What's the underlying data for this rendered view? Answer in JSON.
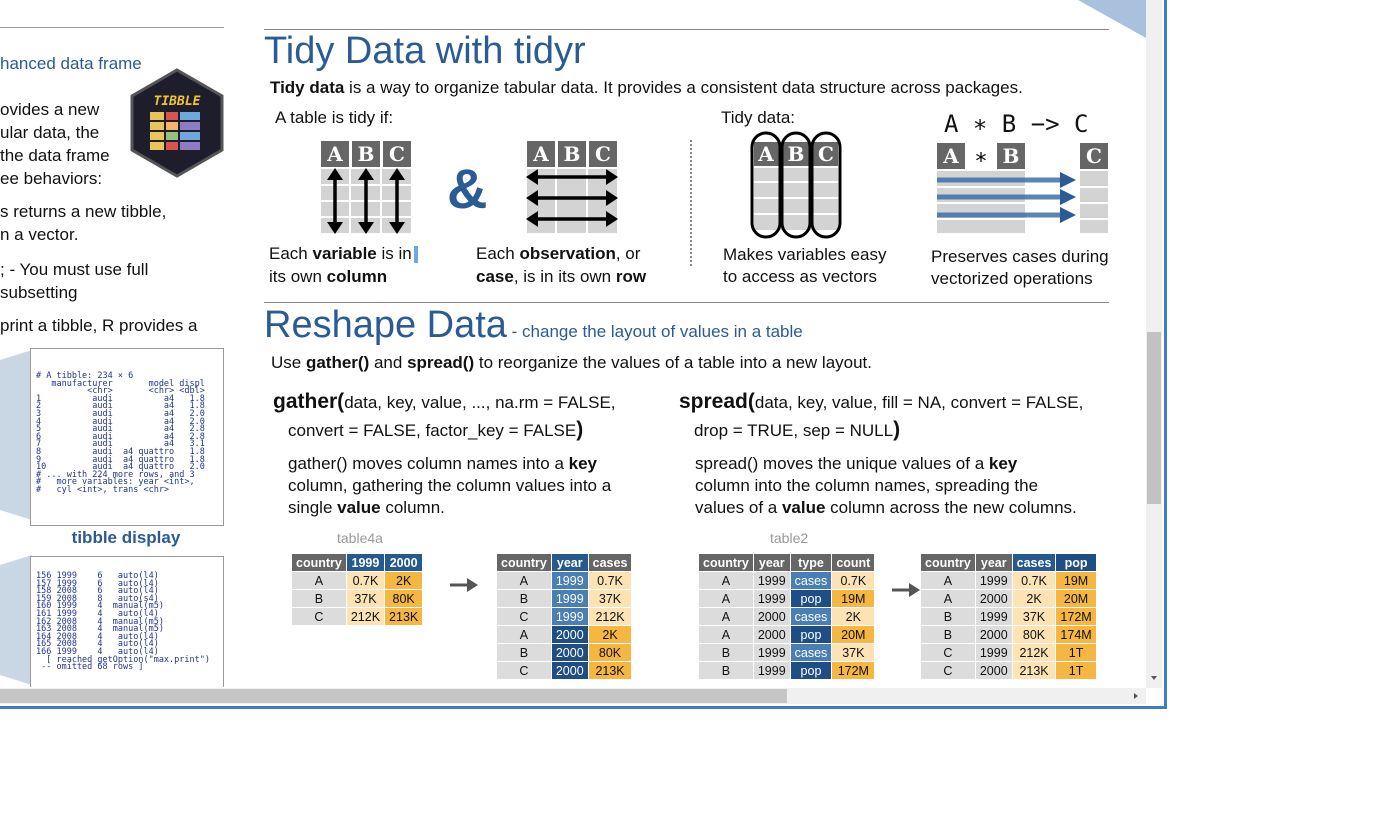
{
  "left_panel": {
    "heading": "hanced data frame",
    "logo_text": "TIBBLE",
    "para1": [
      "ovides a new",
      "ular data, the",
      "the data frame",
      "ee behaviors:"
    ],
    "para2": [
      "s returns a new tibble,",
      "n a vector."
    ],
    "para3": [
      "; - You must use full",
      "subsetting"
    ],
    "para4": "print a tibble, R provides a",
    "console1": [
      "# A tibble: 234 × 6",
      "   manufacturer       model displ",
      "          <chr>       <chr> <dbl>",
      "1          audi          a4   1.8",
      "2          audi          a4   1.8",
      "3          audi          a4   2.0",
      "4          audi          a4   2.0",
      "5          audi          a4   2.8",
      "6          audi          a4   2.8",
      "7          audi          a4   3.1",
      "8          audi  a4 quattro   1.8",
      "9          audi  a4 quattro   1.8",
      "10         audi  a4 quattro   2.0",
      "# ... with 224 more rows, and 3",
      "#   more variables: year <int>,",
      "#   cyl <int>, trans <chr>"
    ],
    "caption": "tibble display",
    "console2": [
      "156 1999    6   auto(l4)",
      "157 1999    6   auto(l4)",
      "158 2008    6   auto(l4)",
      "159 2008    8   auto(s4)",
      "160 1999    4  manual(m5)",
      "161 1999    4   auto(l4)",
      "162 2008    4  manual(m5)",
      "163 2008    4  manual(m5)",
      "164 2008    4   auto(l4)",
      "165 2008    4   auto(l4)",
      "166 1999    4   auto(l4)",
      "  [ reached getOption(\"max.print\")",
      " -- omitted 68 rows ]"
    ]
  },
  "tidy": {
    "title": "Tidy Data with tidyr",
    "intro_bold": "Tidy data",
    "intro_rest": " is a way to organize tabular data. It provides a consistent data structure across packages.",
    "table_is_tidy": "A table is tidy if:",
    "tidy_data_label": "Tidy data:",
    "col_letters": [
      "A",
      "B",
      "C"
    ],
    "ampersand": "&",
    "formula_top": "A ∗ B −> C",
    "formula_star": "∗",
    "cap1_a": "Each ",
    "cap1_b": "variable",
    "cap1_c": " is in",
    "cap1_d": "its own ",
    "cap1_e": "column",
    "cap2_a": "Each ",
    "cap2_b": "observation",
    "cap2_c": ", or",
    "cap2_d": "case",
    "cap2_e": ",  is in its own ",
    "cap2_f": "row",
    "cap3_1": "Makes variables easy",
    "cap3_2": "to access as vectors",
    "cap4_1": "Preserves cases during",
    "cap4_2": "vectorized operations"
  },
  "reshape": {
    "title": "Reshape Data",
    "subtitle": " - change the layout of values in a table",
    "use_a": "Use ",
    "use_b": "gather()",
    "use_c": " and ",
    "use_d": "spread()",
    "use_e": " to reorganize the values of a table into a new layout.",
    "gather_fn": "gather(",
    "gather_args1": "data, key, value, ..., na.rm = FALSE,",
    "gather_args2": "convert = FALSE, factor_key = FALSE",
    "close_paren": ")",
    "gather_desc": [
      "gather() moves column names into a ",
      "key",
      "column, gathering the column values into a",
      "single ",
      "value",
      " column."
    ],
    "spread_fn": "spread(",
    "spread_args1": "data, key, value, fill = NA, convert = FALSE,",
    "spread_args2": "drop = TRUE, sep = NULL",
    "spread_desc": [
      "spread() moves the unique values of a ",
      "key",
      "column into the column names, spreading the",
      "values of a ",
      "value",
      " column across the new columns."
    ],
    "table4a_label": "table4a",
    "table2_label": "table2",
    "table4a": {
      "headers": [
        "country",
        "1999",
        "2000"
      ],
      "rows": [
        [
          "A",
          "0.7K",
          "2K"
        ],
        [
          "B",
          "37K",
          "80K"
        ],
        [
          "C",
          "212K",
          "213K"
        ]
      ]
    },
    "gathered": {
      "headers": [
        "country",
        "year",
        "cases"
      ],
      "rows": [
        [
          "A",
          "1999",
          "0.7K"
        ],
        [
          "B",
          "1999",
          "37K"
        ],
        [
          "C",
          "1999",
          "212K"
        ],
        [
          "A",
          "2000",
          "2K"
        ],
        [
          "B",
          "2000",
          "80K"
        ],
        [
          "C",
          "2000",
          "213K"
        ]
      ]
    },
    "table2": {
      "headers": [
        "country",
        "year",
        "type",
        "count"
      ],
      "rows": [
        [
          "A",
          "1999",
          "cases",
          "0.7K"
        ],
        [
          "A",
          "1999",
          "pop",
          "19M"
        ],
        [
          "A",
          "2000",
          "cases",
          "2K"
        ],
        [
          "A",
          "2000",
          "pop",
          "20M"
        ],
        [
          "B",
          "1999",
          "cases",
          "37K"
        ],
        [
          "B",
          "1999",
          "pop",
          "172M"
        ]
      ]
    },
    "spread_result": {
      "headers": [
        "country",
        "year",
        "cases",
        "pop"
      ],
      "rows": [
        [
          "A",
          "1999",
          "0.7K",
          "19M"
        ],
        [
          "A",
          "2000",
          "2K",
          "20M"
        ],
        [
          "B",
          "1999",
          "37K",
          "172M"
        ],
        [
          "B",
          "2000",
          "80K",
          "174M"
        ],
        [
          "C",
          "1999",
          "212K",
          "1T"
        ],
        [
          "C",
          "2000",
          "213K",
          "1T"
        ]
      ]
    }
  },
  "colors": {
    "title_blue": "#2b5b95",
    "window_border": "#3c7fc4",
    "header_gray": "#666666",
    "key_blue": "#4a7fb5",
    "value_gold": "#f5b742"
  },
  "icons": {
    "arrow": "right-arrow-icon",
    "scroll_down": "scroll-down-icon",
    "scroll_right": "scroll-right-icon"
  }
}
